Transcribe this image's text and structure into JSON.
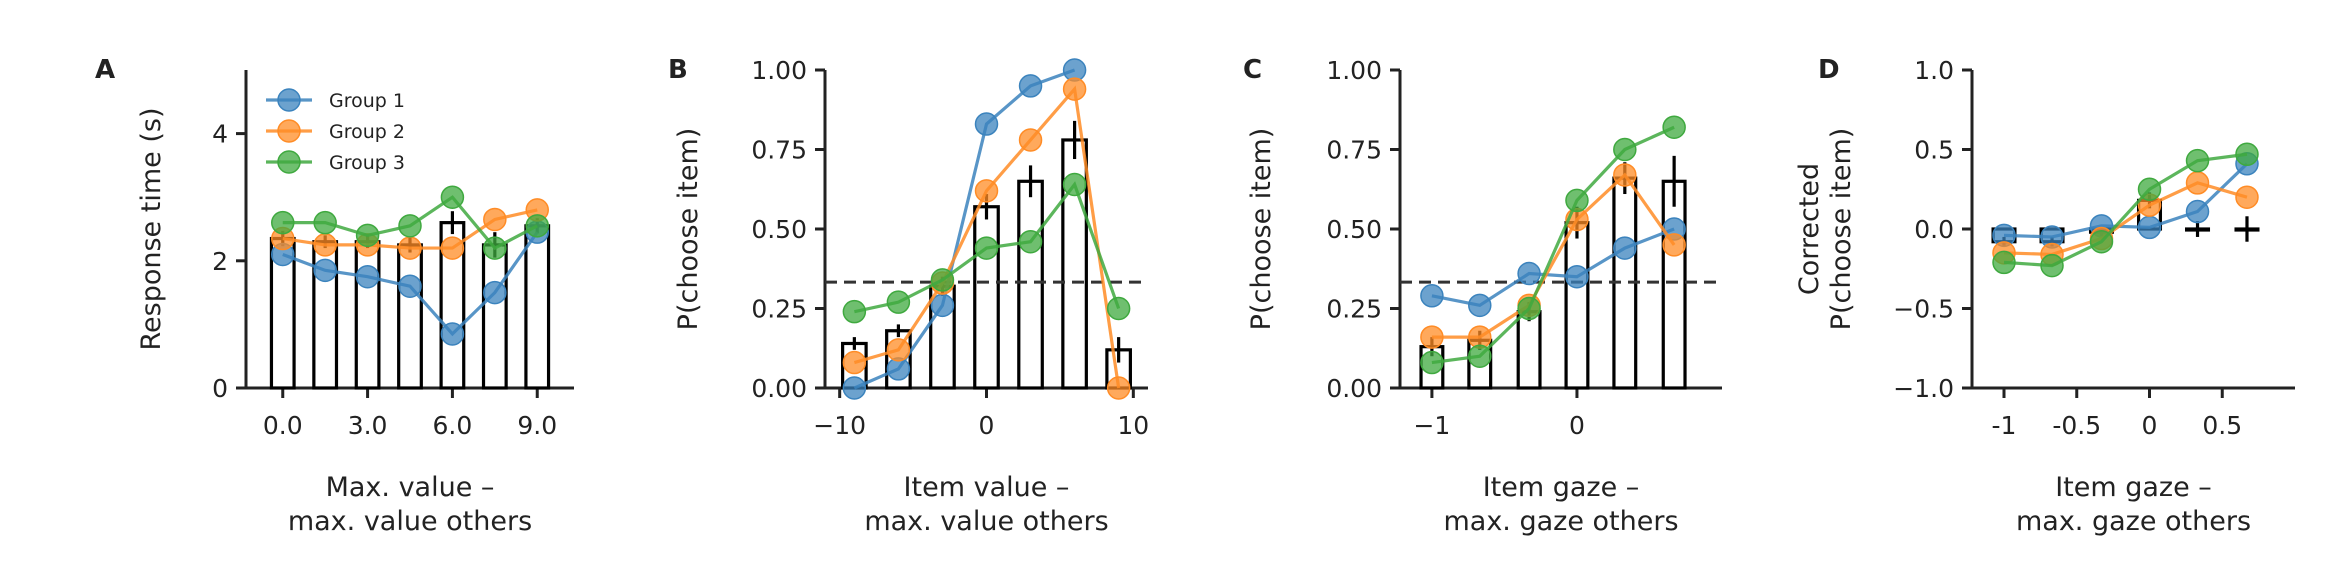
{
  "colors": {
    "group1": "#3b83bd",
    "group2": "#ff8c26",
    "group3": "#3fa93f",
    "bars": "#000000",
    "chance_line": "#333333"
  },
  "chart_data": [
    {
      "type": "bar+line",
      "panel_label": "A",
      "xlabel_lines": [
        "Max. value –",
        "max. value others"
      ],
      "ylabel_lines": [
        "Response time (s)"
      ],
      "xlim": [
        -1.3,
        10.3
      ],
      "ylim": [
        0,
        5
      ],
      "xticks": [
        0,
        3,
        6,
        9
      ],
      "xtick_labels": [
        "0.0",
        "3.0",
        "6.0",
        "9.0"
      ],
      "yticks": [
        0,
        2,
        4
      ],
      "ytick_labels": [
        "0",
        "2",
        "4"
      ],
      "bar_width": 0.8,
      "bars": {
        "x": [
          0,
          1.5,
          3,
          4.5,
          6,
          7.5,
          9
        ],
        "values": [
          2.35,
          2.3,
          2.3,
          2.25,
          2.6,
          2.25,
          2.55
        ],
        "errors": [
          0.12,
          0.1,
          0.1,
          0.12,
          0.18,
          0.2,
          0.12
        ]
      },
      "legend": {
        "position": "top-left"
      },
      "series": [
        {
          "name": "Group 1",
          "color": "group1",
          "x": [
            0,
            1.5,
            3,
            4.5,
            6,
            7.5,
            9
          ],
          "values": [
            2.1,
            1.85,
            1.75,
            1.6,
            0.85,
            1.5,
            2.45
          ]
        },
        {
          "name": "Group 2",
          "color": "group2",
          "x": [
            0,
            1.5,
            3,
            4.5,
            6,
            7.5,
            9
          ],
          "values": [
            2.35,
            2.25,
            2.25,
            2.2,
            2.2,
            2.65,
            2.8
          ]
        },
        {
          "name": "Group 3",
          "color": "group3",
          "x": [
            0,
            1.5,
            3,
            4.5,
            6,
            7.5,
            9
          ],
          "values": [
            2.6,
            2.6,
            2.4,
            2.55,
            3.0,
            2.2,
            2.55
          ]
        }
      ]
    },
    {
      "type": "bar+line",
      "panel_label": "B",
      "xlabel_lines": [
        "Item value –",
        "max. value others"
      ],
      "ylabel_lines": [
        "P(choose item)"
      ],
      "xlim": [
        -11,
        11
      ],
      "ylim": [
        0,
        1
      ],
      "xticks": [
        -10,
        0,
        10
      ],
      "xtick_labels": [
        "−10",
        "0",
        "10"
      ],
      "yticks": [
        0,
        0.25,
        0.5,
        0.75,
        1
      ],
      "ytick_labels": [
        "0.00",
        "0.25",
        "0.50",
        "0.75",
        "1.00"
      ],
      "chance_line": 0.333,
      "bar_width": 1.6,
      "bars": {
        "x": [
          -9,
          -6,
          -3,
          0,
          3,
          6,
          9
        ],
        "values": [
          0.14,
          0.18,
          0.32,
          0.57,
          0.65,
          0.78,
          0.12
        ],
        "errors": [
          0.02,
          0.02,
          0.03,
          0.04,
          0.05,
          0.06,
          0.04
        ]
      },
      "series": [
        {
          "name": "Group 1",
          "color": "group1",
          "x": [
            -9,
            -6,
            -3,
            0,
            3,
            6
          ],
          "values": [
            0.0,
            0.06,
            0.26,
            0.83,
            0.95,
            1.0
          ]
        },
        {
          "name": "Group 2",
          "color": "group2",
          "x": [
            -9,
            -6,
            -3,
            0,
            3,
            6,
            9
          ],
          "values": [
            0.08,
            0.12,
            0.33,
            0.62,
            0.78,
            0.94,
            0.0
          ]
        },
        {
          "name": "Group 3",
          "color": "group3",
          "x": [
            -9,
            -6,
            -3,
            0,
            3,
            6,
            9
          ],
          "values": [
            0.24,
            0.27,
            0.34,
            0.44,
            0.46,
            0.64,
            0.25
          ]
        }
      ]
    },
    {
      "type": "bar+line",
      "panel_label": "C",
      "xlabel_lines": [
        "Item gaze –",
        "max. gaze others"
      ],
      "ylabel_lines": [
        "P(choose item)"
      ],
      "xlim": [
        -1.22,
        1.0
      ],
      "ylim": [
        0,
        1
      ],
      "xticks": [
        -1,
        0
      ],
      "xtick_labels": [
        "−1",
        "0"
      ],
      "yticks": [
        0,
        0.25,
        0.5,
        0.75,
        1
      ],
      "ytick_labels": [
        "0.00",
        "0.25",
        "0.50",
        "0.75",
        "1.00"
      ],
      "chance_line": 0.333,
      "bar_width": 0.15,
      "bars": {
        "x": [
          -1.0,
          -0.67,
          -0.33,
          0.0,
          0.33,
          0.67
        ],
        "values": [
          0.13,
          0.15,
          0.24,
          0.52,
          0.66,
          0.65
        ],
        "errors": [
          0.03,
          0.03,
          0.03,
          0.05,
          0.05,
          0.08
        ]
      },
      "series": [
        {
          "name": "Group 1",
          "color": "group1",
          "x": [
            -1.0,
            -0.67,
            -0.33,
            0.0,
            0.33,
            0.67
          ],
          "values": [
            0.29,
            0.26,
            0.36,
            0.35,
            0.44,
            0.5
          ]
        },
        {
          "name": "Group 2",
          "color": "group2",
          "x": [
            -1.0,
            -0.67,
            -0.33,
            0.0,
            0.33,
            0.67
          ],
          "values": [
            0.16,
            0.16,
            0.26,
            0.53,
            0.67,
            0.45
          ]
        },
        {
          "name": "Group 3",
          "color": "group3",
          "x": [
            -1.0,
            -0.67,
            -0.33,
            0.0,
            0.33,
            0.67
          ],
          "values": [
            0.08,
            0.1,
            0.25,
            0.59,
            0.75,
            0.82
          ]
        }
      ]
    },
    {
      "type": "bar+line",
      "panel_label": "D",
      "xlabel_lines": [
        "Item gaze –",
        "max. gaze others"
      ],
      "ylabel_lines": [
        "Corrected",
        "P(choose item)"
      ],
      "xlim": [
        -1.22,
        1.0
      ],
      "ylim": [
        -1,
        1
      ],
      "xticks": [
        -1,
        -0.5,
        0,
        0.5
      ],
      "xtick_labels": [
        "-1",
        "-0.5",
        "0",
        "0.5"
      ],
      "yticks": [
        -1,
        -0.5,
        0,
        0.5,
        1
      ],
      "ytick_labels": [
        "−1.0",
        "−0.5",
        "0.0",
        "0.5",
        "1.0"
      ],
      "bar_width": 0.15,
      "bars": {
        "x": [
          -1.0,
          -0.67,
          -0.33,
          0.0,
          0.33,
          0.67
        ],
        "values": [
          -0.08,
          -0.08,
          -0.02,
          0.18,
          0.0,
          0.0
        ],
        "errors": [
          0.03,
          0.03,
          0.03,
          0.05,
          0.05,
          0.08
        ]
      },
      "series": [
        {
          "name": "Group 1",
          "color": "group1",
          "x": [
            -1.0,
            -0.67,
            -0.33,
            0.0,
            0.33,
            0.67
          ],
          "values": [
            -0.04,
            -0.05,
            0.02,
            0.01,
            0.11,
            0.41
          ]
        },
        {
          "name": "Group 2",
          "color": "group2",
          "x": [
            -1.0,
            -0.67,
            -0.33,
            0.0,
            0.33,
            0.67
          ],
          "values": [
            -0.15,
            -0.16,
            -0.06,
            0.15,
            0.29,
            0.2
          ]
        },
        {
          "name": "Group 3",
          "color": "group3",
          "x": [
            -1.0,
            -0.67,
            -0.33,
            0.0,
            0.33,
            0.67
          ],
          "values": [
            -0.21,
            -0.23,
            -0.08,
            0.25,
            0.43,
            0.47
          ]
        }
      ]
    }
  ]
}
